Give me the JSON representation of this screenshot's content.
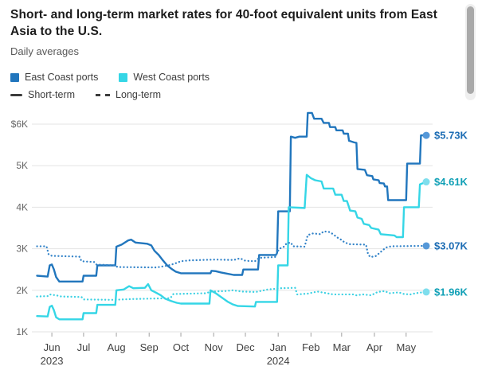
{
  "header": {
    "title": "Short- and long-term market rates for 40-foot equivalent units from East Asia to the U.S.",
    "subtitle": "Daily averages"
  },
  "legend": {
    "series": [
      {
        "label": "East Coast ports"
      },
      {
        "label": "West Coast ports"
      }
    ],
    "styles": [
      {
        "label": "Short-term"
      },
      {
        "label": "Long-term"
      }
    ]
  },
  "colors": {
    "east_blue": "#2176bd",
    "east_blue_dotted": "#3484c9",
    "west_cyan": "#35d6e6",
    "west_cyan_dotted": "#3dd1e3",
    "east_label": "#1d6db4",
    "west_label": "#11a0b6",
    "east_marker": "#5598d8",
    "west_marker": "#7fdeed",
    "line_swatch": "#3c3c3c",
    "gridline": "#e3e3e3",
    "axis_tick": "#a0a0a0"
  },
  "chart_data": {
    "type": "line",
    "title": "Short- and long-term market rates for 40-foot equivalent units from East Asia to the U.S.",
    "subtitle": "Daily averages",
    "value_unit": "$K (USD thousands per FEU)",
    "grid": "horizontal",
    "ylim": [
      1,
      6.4
    ],
    "x_domain_days": [
      0,
      368
    ],
    "y_axis": {
      "ticks": [
        {
          "label": "$6K",
          "value": 6
        },
        {
          "label": "5K",
          "value": 5
        },
        {
          "label": "4K",
          "value": 4
        },
        {
          "label": "3K",
          "value": 3
        },
        {
          "label": "2K",
          "value": 2
        },
        {
          "label": "1K",
          "value": 1
        }
      ]
    },
    "x_axis": {
      "ticks": [
        {
          "label": "Jun",
          "day": 14,
          "year_label": "2023"
        },
        {
          "label": "Jul",
          "day": 44
        },
        {
          "label": "Aug",
          "day": 75
        },
        {
          "label": "Sep",
          "day": 106
        },
        {
          "label": "Oct",
          "day": 136
        },
        {
          "label": "Nov",
          "day": 167
        },
        {
          "label": "Dec",
          "day": 197
        },
        {
          "label": "Jan",
          "day": 228,
          "year_label": "2024"
        },
        {
          "label": "Feb",
          "day": 259
        },
        {
          "label": "Mar",
          "day": 288
        },
        {
          "label": "Apr",
          "day": 319
        },
        {
          "label": "May",
          "day": 349
        }
      ]
    },
    "series": [
      {
        "id": "east-coast-short-term",
        "name": "East Coast ports — Short-term",
        "style": "solid",
        "color_key": "east_blue",
        "marker_key": "east_marker",
        "label_key": "east_label",
        "end_label": "$5.73K",
        "end_value": 5.73,
        "points": [
          [
            0,
            2.35
          ],
          [
            10,
            2.33
          ],
          [
            12,
            2.6
          ],
          [
            14,
            2.62
          ],
          [
            16,
            2.5
          ],
          [
            18,
            2.32
          ],
          [
            21,
            2.21
          ],
          [
            43,
            2.21
          ],
          [
            44,
            2.35
          ],
          [
            56,
            2.35
          ],
          [
            57,
            2.6
          ],
          [
            74,
            2.6
          ],
          [
            75,
            3.05
          ],
          [
            80,
            3.1
          ],
          [
            86,
            3.2
          ],
          [
            89,
            3.22
          ],
          [
            93,
            3.15
          ],
          [
            104,
            3.12
          ],
          [
            108,
            3.08
          ],
          [
            111,
            2.95
          ],
          [
            115,
            2.85
          ],
          [
            119,
            2.72
          ],
          [
            123,
            2.6
          ],
          [
            127,
            2.52
          ],
          [
            131,
            2.45
          ],
          [
            136,
            2.41
          ],
          [
            164,
            2.41
          ],
          [
            165,
            2.47
          ],
          [
            169,
            2.46
          ],
          [
            174,
            2.43
          ],
          [
            186,
            2.37
          ],
          [
            194,
            2.37
          ],
          [
            195,
            2.5
          ],
          [
            209,
            2.5
          ],
          [
            210,
            2.85
          ],
          [
            226,
            2.85
          ],
          [
            227,
            2.9
          ],
          [
            228,
            3.9
          ],
          [
            239,
            3.9
          ],
          [
            240,
            5.7
          ],
          [
            244,
            5.67
          ],
          [
            248,
            5.7
          ],
          [
            255,
            5.7
          ],
          [
            256,
            6.27
          ],
          [
            260,
            6.27
          ],
          [
            262,
            6.13
          ],
          [
            269,
            6.13
          ],
          [
            271,
            6.03
          ],
          [
            276,
            6.03
          ],
          [
            277,
            5.93
          ],
          [
            282,
            5.93
          ],
          [
            283,
            5.85
          ],
          [
            289,
            5.85
          ],
          [
            290,
            5.77
          ],
          [
            294,
            5.77
          ],
          [
            295,
            5.6
          ],
          [
            300,
            5.56
          ],
          [
            302,
            5.55
          ],
          [
            303,
            4.92
          ],
          [
            310,
            4.9
          ],
          [
            312,
            4.77
          ],
          [
            317,
            4.75
          ],
          [
            318,
            4.67
          ],
          [
            323,
            4.65
          ],
          [
            324,
            4.58
          ],
          [
            328,
            4.57
          ],
          [
            329,
            4.5
          ],
          [
            331,
            4.5
          ],
          [
            332,
            4.17
          ],
          [
            349,
            4.17
          ],
          [
            350,
            5.05
          ],
          [
            362,
            5.05
          ],
          [
            363,
            5.73
          ],
          [
            368,
            5.73
          ]
        ]
      },
      {
        "id": "west-coast-short-term",
        "name": "West Coast ports — Short-term",
        "style": "solid",
        "color_key": "west_cyan",
        "marker_key": "west_marker",
        "label_key": "west_label",
        "end_label": "$4.61K",
        "end_value": 4.61,
        "points": [
          [
            0,
            1.38
          ],
          [
            10,
            1.37
          ],
          [
            12,
            1.6
          ],
          [
            14,
            1.63
          ],
          [
            16,
            1.52
          ],
          [
            18,
            1.35
          ],
          [
            21,
            1.3
          ],
          [
            43,
            1.3
          ],
          [
            44,
            1.45
          ],
          [
            56,
            1.45
          ],
          [
            57,
            1.65
          ],
          [
            74,
            1.65
          ],
          [
            75,
            2.0
          ],
          [
            82,
            2.02
          ],
          [
            87,
            2.1
          ],
          [
            91,
            2.05
          ],
          [
            102,
            2.06
          ],
          [
            105,
            2.15
          ],
          [
            108,
            2.0
          ],
          [
            112,
            1.95
          ],
          [
            117,
            1.88
          ],
          [
            121,
            1.8
          ],
          [
            127,
            1.74
          ],
          [
            132,
            1.7
          ],
          [
            136,
            1.68
          ],
          [
            163,
            1.68
          ],
          [
            164,
            2.0
          ],
          [
            169,
            1.93
          ],
          [
            175,
            1.82
          ],
          [
            180,
            1.73
          ],
          [
            185,
            1.66
          ],
          [
            190,
            1.62
          ],
          [
            206,
            1.61
          ],
          [
            207,
            1.72
          ],
          [
            227,
            1.72
          ],
          [
            228,
            2.6
          ],
          [
            237,
            2.6
          ],
          [
            238,
            4.0
          ],
          [
            253,
            3.98
          ],
          [
            255,
            4.78
          ],
          [
            259,
            4.7
          ],
          [
            263,
            4.65
          ],
          [
            269,
            4.62
          ],
          [
            271,
            4.45
          ],
          [
            280,
            4.45
          ],
          [
            282,
            4.3
          ],
          [
            288,
            4.3
          ],
          [
            290,
            4.15
          ],
          [
            293,
            4.15
          ],
          [
            295,
            4.0
          ],
          [
            296,
            3.92
          ],
          [
            301,
            3.9
          ],
          [
            303,
            3.75
          ],
          [
            307,
            3.72
          ],
          [
            309,
            3.6
          ],
          [
            314,
            3.57
          ],
          [
            316,
            3.5
          ],
          [
            323,
            3.46
          ],
          [
            325,
            3.35
          ],
          [
            338,
            3.32
          ],
          [
            340,
            3.28
          ],
          [
            346,
            3.28
          ],
          [
            347,
            4.0
          ],
          [
            361,
            4.0
          ],
          [
            362,
            4.55
          ],
          [
            365,
            4.58
          ],
          [
            368,
            4.61
          ]
        ]
      },
      {
        "id": "east-coast-long-term",
        "name": "East Coast ports — Long-term",
        "style": "dotted",
        "color_key": "east_blue_dotted",
        "marker_key": "east_marker",
        "label_key": "east_label",
        "end_label": "$3.07K",
        "end_value": 3.07,
        "points": [
          [
            0,
            3.06
          ],
          [
            9,
            3.06
          ],
          [
            11,
            2.86
          ],
          [
            14,
            2.83
          ],
          [
            40,
            2.81
          ],
          [
            42,
            2.7
          ],
          [
            54,
            2.68
          ],
          [
            56,
            2.62
          ],
          [
            74,
            2.6
          ],
          [
            76,
            2.56
          ],
          [
            113,
            2.55
          ],
          [
            118,
            2.57
          ],
          [
            124,
            2.6
          ],
          [
            130,
            2.64
          ],
          [
            136,
            2.7
          ],
          [
            144,
            2.72
          ],
          [
            168,
            2.74
          ],
          [
            186,
            2.73
          ],
          [
            192,
            2.77
          ],
          [
            197,
            2.71
          ],
          [
            206,
            2.7
          ],
          [
            210,
            2.78
          ],
          [
            225,
            2.8
          ],
          [
            229,
            3.0
          ],
          [
            233,
            3.04
          ],
          [
            236,
            3.13
          ],
          [
            240,
            3.15
          ],
          [
            242,
            3.06
          ],
          [
            253,
            3.05
          ],
          [
            256,
            3.33
          ],
          [
            261,
            3.37
          ],
          [
            268,
            3.35
          ],
          [
            271,
            3.42
          ],
          [
            277,
            3.4
          ],
          [
            281,
            3.33
          ],
          [
            284,
            3.27
          ],
          [
            288,
            3.21
          ],
          [
            291,
            3.15
          ],
          [
            296,
            3.11
          ],
          [
            311,
            3.1
          ],
          [
            313,
            2.87
          ],
          [
            315,
            2.8
          ],
          [
            320,
            2.82
          ],
          [
            324,
            2.9
          ],
          [
            327,
            2.97
          ],
          [
            330,
            3.03
          ],
          [
            335,
            3.06
          ],
          [
            368,
            3.07
          ]
        ]
      },
      {
        "id": "west-coast-long-term",
        "name": "West Coast ports — Long-term",
        "style": "dotted",
        "color_key": "west_cyan_dotted",
        "marker_key": "west_marker",
        "label_key": "west_label",
        "end_label": "$1.96K",
        "end_value": 1.96,
        "points": [
          [
            0,
            1.85
          ],
          [
            10,
            1.86
          ],
          [
            12,
            1.9
          ],
          [
            18,
            1.88
          ],
          [
            23,
            1.85
          ],
          [
            42,
            1.84
          ],
          [
            44,
            1.78
          ],
          [
            72,
            1.77
          ],
          [
            90,
            1.79
          ],
          [
            110,
            1.8
          ],
          [
            126,
            1.81
          ],
          [
            129,
            1.91
          ],
          [
            160,
            1.93
          ],
          [
            164,
            1.97
          ],
          [
            178,
            1.98
          ],
          [
            185,
            2.0
          ],
          [
            194,
            1.97
          ],
          [
            207,
            1.96
          ],
          [
            218,
            2.02
          ],
          [
            227,
            2.04
          ],
          [
            230,
            2.05
          ],
          [
            244,
            2.06
          ],
          [
            246,
            1.9
          ],
          [
            256,
            1.92
          ],
          [
            265,
            1.97
          ],
          [
            274,
            1.93
          ],
          [
            280,
            1.9
          ],
          [
            299,
            1.9
          ],
          [
            302,
            1.88
          ],
          [
            308,
            1.9
          ],
          [
            316,
            1.88
          ],
          [
            322,
            1.96
          ],
          [
            329,
            1.98
          ],
          [
            333,
            1.93
          ],
          [
            342,
            1.95
          ],
          [
            347,
            1.91
          ],
          [
            353,
            1.9
          ],
          [
            358,
            1.93
          ],
          [
            364,
            1.95
          ],
          [
            368,
            1.96
          ]
        ]
      }
    ]
  }
}
